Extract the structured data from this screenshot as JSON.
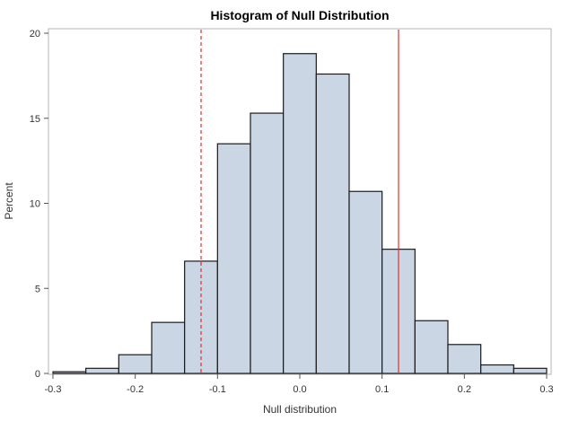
{
  "chart_data": {
    "type": "bar",
    "title": "Histogram of Null Distribution",
    "xlabel": "Null distribution",
    "ylabel": "Percent",
    "xlim": [
      -0.3,
      0.3
    ],
    "ylim": [
      0,
      20
    ],
    "x_ticks": [
      "-0.3",
      "-0.2",
      "-0.1",
      "0.0",
      "0.1",
      "0.2",
      "0.3"
    ],
    "y_ticks": [
      "0",
      "5",
      "10",
      "15",
      "20"
    ],
    "bin_width": 0.04,
    "bins": [
      {
        "x": -0.28,
        "value": 0.1
      },
      {
        "x": -0.24,
        "value": 0.3
      },
      {
        "x": -0.2,
        "value": 1.1
      },
      {
        "x": -0.16,
        "value": 3.0
      },
      {
        "x": -0.12,
        "value": 6.6
      },
      {
        "x": -0.08,
        "value": 13.5
      },
      {
        "x": -0.04,
        "value": 15.3
      },
      {
        "x": 0.0,
        "value": 18.8
      },
      {
        "x": 0.04,
        "value": 17.6
      },
      {
        "x": 0.08,
        "value": 10.7
      },
      {
        "x": 0.12,
        "value": 7.3
      },
      {
        "x": 0.16,
        "value": 3.1
      },
      {
        "x": 0.2,
        "value": 1.7
      },
      {
        "x": 0.24,
        "value": 0.5
      },
      {
        "x": 0.28,
        "value": 0.3
      }
    ],
    "reference_lines": [
      {
        "x": -0.12,
        "style": "dashed"
      },
      {
        "x": 0.12,
        "style": "solid"
      }
    ],
    "colors": {
      "bar_fill": "#cbd6e4",
      "bar_stroke": "#1a1a1a",
      "reference_line": "#e23030",
      "frame": "#b4b4b4"
    },
    "grid": false
  }
}
